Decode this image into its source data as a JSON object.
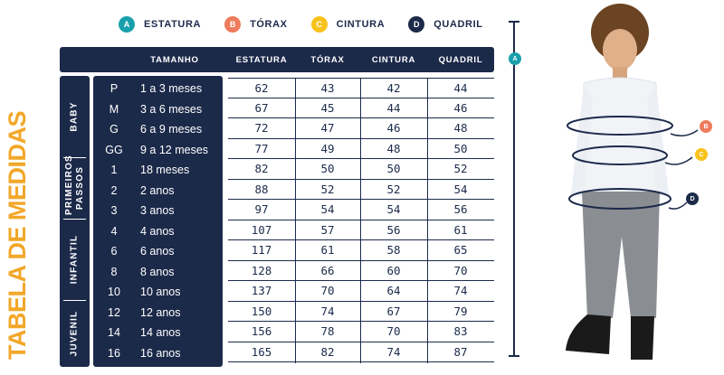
{
  "legend": [
    {
      "letter": "A",
      "label": "ESTATURA",
      "color": "#1aa0ac"
    },
    {
      "letter": "B",
      "label": "TÓRAX",
      "color": "#ee7b5b"
    },
    {
      "letter": "C",
      "label": "CINTURA",
      "color": "#f7c21a"
    },
    {
      "letter": "D",
      "label": "QUADRIL",
      "color": "#1c2a4a"
    }
  ],
  "title": "TABELA DE MEDIDAS",
  "headers": {
    "size": "TAMANHO",
    "estatura": "ESTATURA",
    "torax": "TÓRAX",
    "cintura": "CINTURA",
    "quadril": "QUADRIL"
  },
  "groups": [
    {
      "label": "BABY"
    },
    {
      "label": "PRIMEIROS PASSOS"
    },
    {
      "label": "INFANTIL"
    },
    {
      "label": "JUVENIL"
    }
  ],
  "rows": [
    {
      "code": "P",
      "age": "1 a 3 meses",
      "estatura": "62",
      "torax": "43",
      "cintura": "42",
      "quadril": "44"
    },
    {
      "code": "M",
      "age": "3 a 6 meses",
      "estatura": "67",
      "torax": "45",
      "cintura": "44",
      "quadril": "46"
    },
    {
      "code": "G",
      "age": "6 a 9 meses",
      "estatura": "72",
      "torax": "47",
      "cintura": "46",
      "quadril": "48"
    },
    {
      "code": "GG",
      "age": "9 a 12 meses",
      "estatura": "77",
      "torax": "49",
      "cintura": "48",
      "quadril": "50"
    },
    {
      "code": "1",
      "age": "18 meses",
      "estatura": "82",
      "torax": "50",
      "cintura": "50",
      "quadril": "52"
    },
    {
      "code": "2",
      "age": "2 anos",
      "estatura": "88",
      "torax": "52",
      "cintura": "52",
      "quadril": "54"
    },
    {
      "code": "3",
      "age": "3 anos",
      "estatura": "97",
      "torax": "54",
      "cintura": "54",
      "quadril": "56"
    },
    {
      "code": "4",
      "age": "4 anos",
      "estatura": "107",
      "torax": "57",
      "cintura": "56",
      "quadril": "61"
    },
    {
      "code": "6",
      "age": "6 anos",
      "estatura": "117",
      "torax": "61",
      "cintura": "58",
      "quadril": "65"
    },
    {
      "code": "8",
      "age": "8 anos",
      "estatura": "128",
      "torax": "66",
      "cintura": "60",
      "quadril": "70"
    },
    {
      "code": "10",
      "age": "10 anos",
      "estatura": "137",
      "torax": "70",
      "cintura": "64",
      "quadril": "74"
    },
    {
      "code": "12",
      "age": "12 anos",
      "estatura": "150",
      "torax": "74",
      "cintura": "67",
      "quadril": "79"
    },
    {
      "code": "14",
      "age": "14 anos",
      "estatura": "156",
      "torax": "78",
      "cintura": "70",
      "quadril": "83"
    },
    {
      "code": "16",
      "age": "16 anos",
      "estatura": "165",
      "torax": "82",
      "cintura": "74",
      "quadril": "87"
    }
  ],
  "figure": {
    "scale_badge": "A",
    "markers": [
      "B",
      "C",
      "D"
    ]
  }
}
